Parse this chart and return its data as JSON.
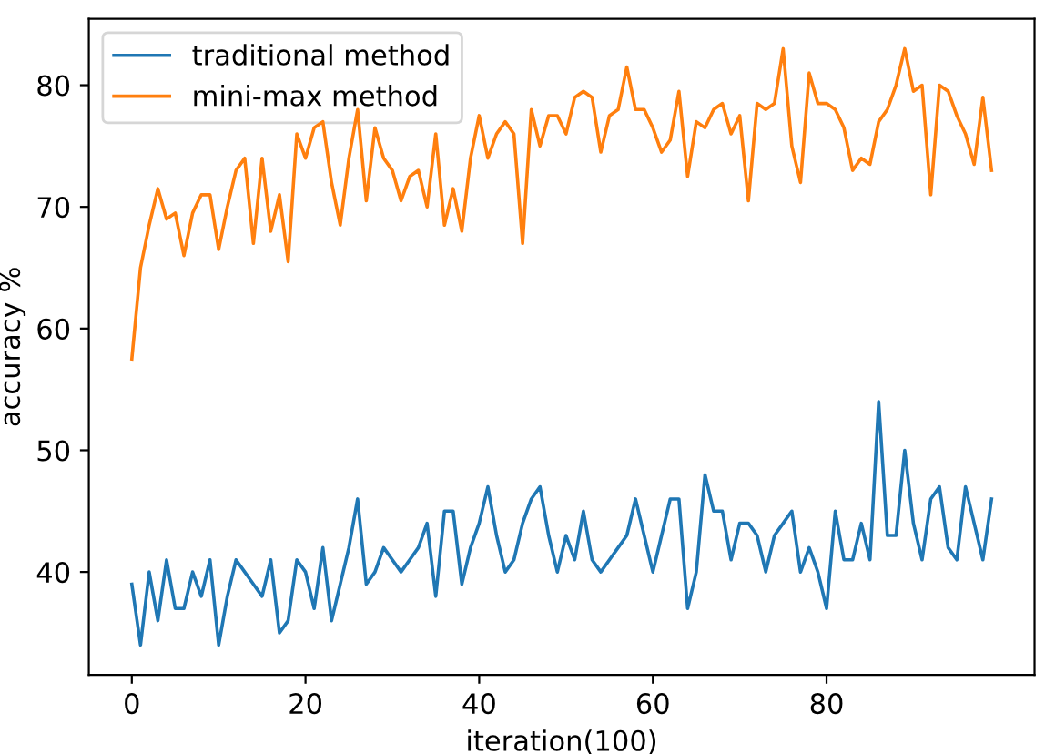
{
  "chart_data": {
    "type": "line",
    "xlabel": "iteration(100)",
    "ylabel": "accuracy %",
    "x": [
      0,
      1,
      2,
      3,
      4,
      5,
      6,
      7,
      8,
      9,
      10,
      11,
      12,
      13,
      14,
      15,
      16,
      17,
      18,
      19,
      20,
      21,
      22,
      23,
      24,
      25,
      26,
      27,
      28,
      29,
      30,
      31,
      32,
      33,
      34,
      35,
      36,
      37,
      38,
      39,
      40,
      41,
      42,
      43,
      44,
      45,
      46,
      47,
      48,
      49,
      50,
      51,
      52,
      53,
      54,
      55,
      56,
      57,
      58,
      59,
      60,
      61,
      62,
      63,
      64,
      65,
      66,
      67,
      68,
      69,
      70,
      71,
      72,
      73,
      74,
      75,
      76,
      77,
      78,
      79,
      80,
      81,
      82,
      83,
      84,
      85,
      86,
      87,
      88,
      89,
      90,
      91,
      92,
      93,
      94,
      95,
      96,
      97,
      98,
      99
    ],
    "series": [
      {
        "name": "traditional method",
        "color": "#1f77b4",
        "values": [
          39,
          34,
          40,
          36,
          41,
          37,
          37,
          40,
          38,
          41,
          34,
          38,
          41,
          40,
          39,
          38,
          41,
          35,
          36,
          41,
          40,
          37,
          42,
          36,
          39,
          42,
          46,
          39,
          40,
          42,
          41,
          40,
          41,
          42,
          44,
          38,
          45,
          45,
          39,
          42,
          44,
          47,
          43,
          40,
          41,
          44,
          46,
          47,
          43,
          40,
          43,
          41,
          45,
          41,
          40,
          41,
          42,
          43,
          46,
          43,
          40,
          43,
          46,
          46,
          37,
          40,
          48,
          45,
          45,
          41,
          44,
          44,
          43,
          40,
          43,
          44,
          45,
          40,
          42,
          40,
          37,
          45,
          41,
          41,
          44,
          41,
          54,
          43,
          43,
          50,
          44,
          41,
          46,
          47,
          42,
          41,
          47,
          44,
          41,
          46
        ]
      },
      {
        "name": "mini-max method",
        "color": "#ff7f0e",
        "values": [
          57.5,
          65,
          68.5,
          71.5,
          69,
          69.5,
          66,
          69.5,
          71,
          71,
          66.5,
          70,
          73,
          74,
          67,
          74,
          68,
          71,
          65.5,
          76,
          74,
          76.5,
          77,
          72,
          68.5,
          74,
          78,
          70.5,
          76.5,
          74,
          73,
          70.5,
          72.5,
          73,
          70,
          76,
          68.5,
          71.5,
          68,
          74,
          77.5,
          74,
          76,
          77,
          76,
          67,
          78,
          75,
          77.5,
          77.5,
          76,
          79,
          79.5,
          79,
          74.5,
          77.5,
          78,
          81.5,
          78,
          78,
          76.5,
          74.5,
          75.5,
          79.5,
          72.5,
          77,
          76.5,
          78,
          78.5,
          76,
          77.5,
          70.5,
          78.5,
          78,
          78.5,
          83,
          75,
          72,
          81,
          78.5,
          78.5,
          78,
          76.5,
          73,
          74,
          73.5,
          77,
          78,
          80,
          83,
          79.5,
          80,
          71,
          80,
          79.5,
          77.5,
          76,
          73.5,
          79,
          73
        ]
      }
    ],
    "xlim": [
      -4.95,
      103.95
    ],
    "ylim": [
      31.55,
      85.45
    ],
    "xticks": [
      0,
      20,
      40,
      60,
      80
    ],
    "yticks": [
      40,
      50,
      60,
      70,
      80
    ],
    "legend": "top left",
    "grid": false
  }
}
